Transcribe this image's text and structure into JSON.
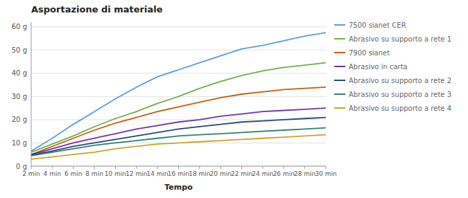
{
  "chart_data": {
    "type": "line",
    "title": "Asportazione di materiale",
    "xlabel": "Tempo",
    "x": [
      2,
      4,
      6,
      8,
      10,
      12,
      14,
      16,
      18,
      20,
      22,
      24,
      26,
      28,
      30
    ],
    "series": [
      {
        "name": "7500 sianet CER",
        "color": "#5b9bd5",
        "values": [
          6.5,
          12.0,
          18.0,
          23.5,
          29.0,
          34.0,
          38.5,
          41.5,
          44.5,
          47.5,
          50.5,
          52.0,
          54.0,
          56.0,
          57.5
        ]
      },
      {
        "name": "Abrasivo su supporto a rete 1",
        "color": "#70ad47",
        "values": [
          6.0,
          9.5,
          13.0,
          17.0,
          20.5,
          23.5,
          27.0,
          30.0,
          33.5,
          36.5,
          39.0,
          41.0,
          42.5,
          43.5,
          44.5
        ]
      },
      {
        "name": "7900 sianet",
        "color": "#c55a11",
        "values": [
          5.0,
          8.5,
          12.0,
          15.5,
          18.5,
          21.0,
          23.5,
          25.5,
          27.5,
          29.5,
          31.0,
          32.0,
          33.0,
          33.5,
          34.0
        ]
      },
      {
        "name": "Abrasivo in carta",
        "color": "#7030a0",
        "values": [
          5.0,
          7.5,
          10.0,
          12.0,
          14.0,
          16.0,
          17.5,
          19.0,
          20.0,
          21.5,
          22.5,
          23.5,
          24.0,
          24.5,
          25.0
        ]
      },
      {
        "name": "Abrasivo su supporto a rete 2",
        "color": "#264478",
        "values": [
          4.8,
          6.5,
          8.5,
          10.0,
          11.5,
          13.0,
          14.5,
          16.0,
          17.0,
          18.0,
          19.0,
          19.5,
          20.0,
          20.5,
          21.0
        ]
      },
      {
        "name": "Abrasivo su supporto a rete 3",
        "color": "#2e7d6e",
        "values": [
          4.5,
          6.0,
          7.5,
          9.0,
          10.0,
          11.0,
          12.0,
          13.0,
          13.5,
          14.0,
          14.5,
          15.0,
          15.5,
          16.0,
          16.5
        ]
      },
      {
        "name": "Abrasivo su supporto a rete 4",
        "color": "#c9a227",
        "values": [
          3.0,
          4.0,
          5.0,
          6.0,
          7.5,
          8.5,
          9.5,
          10.0,
          10.5,
          11.0,
          11.5,
          12.0,
          12.5,
          13.0,
          13.5
        ]
      }
    ],
    "xlim": [
      2,
      30
    ],
    "xticks": [
      {
        "value": 2,
        "label": "2 min"
      },
      {
        "value": 4,
        "label": "4 min"
      },
      {
        "value": 6,
        "label": "6 min"
      },
      {
        "value": 8,
        "label": "8 min"
      },
      {
        "value": 10,
        "label": "10 min"
      },
      {
        "value": 12,
        "label": "12 min"
      },
      {
        "value": 14,
        "label": "14 min"
      },
      {
        "value": 16,
        "label": "16 min"
      },
      {
        "value": 18,
        "label": "18 min"
      },
      {
        "value": 20,
        "label": "20 min"
      },
      {
        "value": 22,
        "label": "22 min"
      },
      {
        "value": 24,
        "label": "24 min"
      },
      {
        "value": 26,
        "label": "26 min"
      },
      {
        "value": 28,
        "label": "28 min"
      },
      {
        "value": 30,
        "label": "30 min"
      }
    ],
    "ylim": [
      0,
      62
    ],
    "yticks": [
      {
        "value": 0,
        "label": "0 g"
      },
      {
        "value": 10,
        "label": "10 g"
      },
      {
        "value": 20,
        "label": "20 g"
      },
      {
        "value": 30,
        "label": "30 g"
      },
      {
        "value": 40,
        "label": "40 g"
      },
      {
        "value": 50,
        "label": "50 g"
      },
      {
        "value": 60,
        "label": "60 g"
      }
    ],
    "grid": true,
    "legend": "right"
  }
}
